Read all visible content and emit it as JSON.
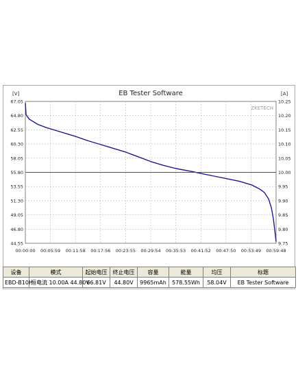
{
  "chart_data": {
    "type": "line",
    "title": "EB Tester Software",
    "watermark": "ZKETECH",
    "y_left": {
      "unit_label": "[V]",
      "range": [
        44.55,
        67.05
      ],
      "ticks": [
        "67.05",
        "64.80",
        "62.55",
        "60.30",
        "58.05",
        "55.80",
        "53.55",
        "51.30",
        "49.05",
        "46.80",
        "44.55"
      ]
    },
    "y_right": {
      "unit_label": "[A]",
      "range": [
        9.75,
        10.25
      ],
      "ticks": [
        "10.25",
        "10.20",
        "10.15",
        "10.10",
        "10.05",
        "10.00",
        "9.95",
        "9.90",
        "9.85",
        "9.80",
        "9.75"
      ]
    },
    "x_axis": {
      "range_seconds": [
        0,
        3588
      ],
      "ticks": [
        "00:00:00",
        "00:05:59",
        "00:11:58",
        "00:17:56",
        "00:23:55",
        "00:29:54",
        "00:35:53",
        "00:41:52",
        "00:47:50",
        "00:53:49",
        "00:59:48"
      ]
    },
    "grid": true,
    "series": [
      {
        "axis": "left",
        "color": "#1a1a8c",
        "x": [
          "00:00:00",
          "00:00:10",
          "00:00:30",
          "00:01:00",
          "00:02:00",
          "00:03:00",
          "00:05:00",
          "00:06:00",
          "00:10:00",
          "00:12:00",
          "00:15:00",
          "00:18:00",
          "00:20:00",
          "00:24:00",
          "00:26:00",
          "00:30:00",
          "00:33:00",
          "00:36:00",
          "00:40:00",
          "00:42:00",
          "00:45:00",
          "00:48:00",
          "00:51:00",
          "00:54:00",
          "00:56:00",
          "00:57:00",
          "00:58:00",
          "00:58:40",
          "00:59:10",
          "00:59:30",
          "00:59:48"
        ],
        "values": [
          66.81,
          65.0,
          64.6,
          64.2,
          63.8,
          63.4,
          62.9,
          62.7,
          61.9,
          61.5,
          60.8,
          60.2,
          59.8,
          59.0,
          58.5,
          57.5,
          56.9,
          56.4,
          55.9,
          55.6,
          55.2,
          54.8,
          54.4,
          53.8,
          53.1,
          52.6,
          51.6,
          50.2,
          48.4,
          46.5,
          44.8
        ]
      },
      {
        "axis": "right",
        "color": "#c02020",
        "x": [
          "00:00:00",
          "00:59:48"
        ],
        "values": [
          10.0,
          10.0
        ]
      }
    ]
  },
  "info_table": {
    "headers": [
      "设备",
      "模式",
      "起始电压",
      "终止电压",
      "容量",
      "能量",
      "均压",
      "标题"
    ],
    "values": [
      "EBD-B10H",
      "恒电流  10.00A  44.80V",
      "66.81V",
      "44.80V",
      "9965mAh",
      "578.55Wh",
      "58.04V",
      "EB Tester Software"
    ]
  }
}
